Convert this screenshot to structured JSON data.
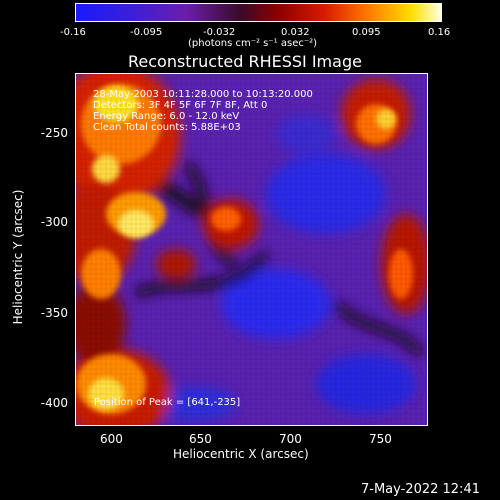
{
  "colorbar": {
    "ticks": [
      "-0.16",
      "-0.095",
      "-0.032",
      "0.032",
      "0.095",
      "0.16"
    ],
    "unit_label": "(photons cm⁻² s⁻¹ asec⁻²)"
  },
  "title": "Reconstructed RHESSI Image",
  "overlay": {
    "line1": "28-May-2003 10:11:28.000 to 10:13:20.000",
    "line2": "Detectors: 3F 4F 5F 6F 7F 8F, Att 0",
    "line3": "Energy Range: 6.0 - 12.0 keV",
    "line4": "Clean     Total counts: 5.88E+03",
    "peak": "Position of Peak = [641,-235]"
  },
  "axes": {
    "xlabel": "Heliocentric X (arcsec)",
    "ylabel": "Heliocentric Y (arcsec)",
    "xticks": [
      "600",
      "650",
      "700",
      "750"
    ],
    "yticks": [
      "-250",
      "-300",
      "-350",
      "-400"
    ]
  },
  "timestamp": "7-May-2022 12:41"
}
